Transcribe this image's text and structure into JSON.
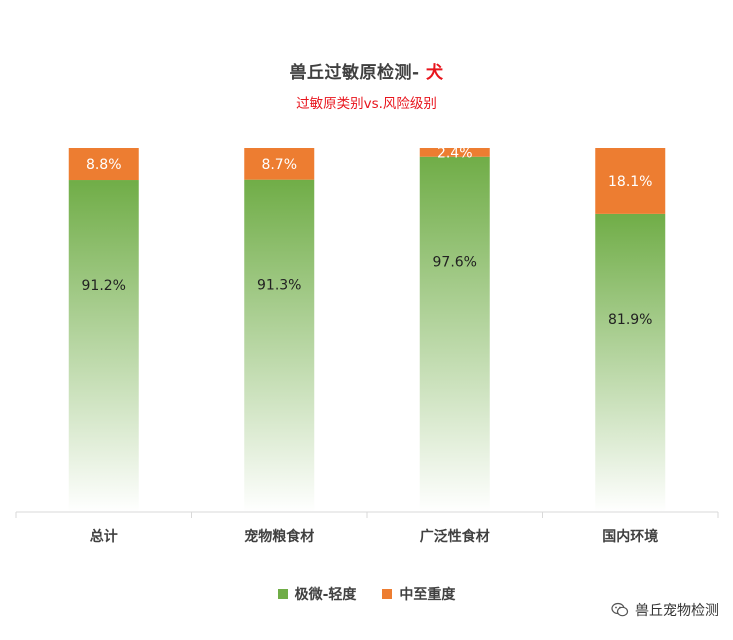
{
  "header": {
    "title_main": "兽丘过敏原检测- ",
    "title_accent": "犬",
    "subtitle": "过敏原类别vs.风险级别"
  },
  "legend": {
    "items": [
      {
        "label": "极微-轻度",
        "color": "#70ad47"
      },
      {
        "label": "中至重度",
        "color": "#ed7d31"
      }
    ]
  },
  "watermark": {
    "text": "兽丘宠物检测",
    "icon": "wechat-icon"
  },
  "chart_data": {
    "type": "bar",
    "stacked": true,
    "percent": true,
    "categories": [
      "总计",
      "宠物粮食材",
      "广泛性食材",
      "国内环境"
    ],
    "series": [
      {
        "name": "极微-轻度",
        "color": "#70ad47",
        "values": [
          91.2,
          91.3,
          97.6,
          81.9
        ],
        "labels": [
          "91.2%",
          "91.3%",
          "97.6%",
          "81.9%"
        ]
      },
      {
        "name": "中至重度",
        "color": "#ed7d31",
        "values": [
          8.8,
          8.7,
          2.4,
          18.1
        ],
        "labels": [
          "8.8%",
          "8.7%",
          "2.4%",
          "18.1%"
        ]
      }
    ],
    "ylim": [
      0,
      100
    ],
    "grid": false,
    "legend_position": "bottom"
  }
}
